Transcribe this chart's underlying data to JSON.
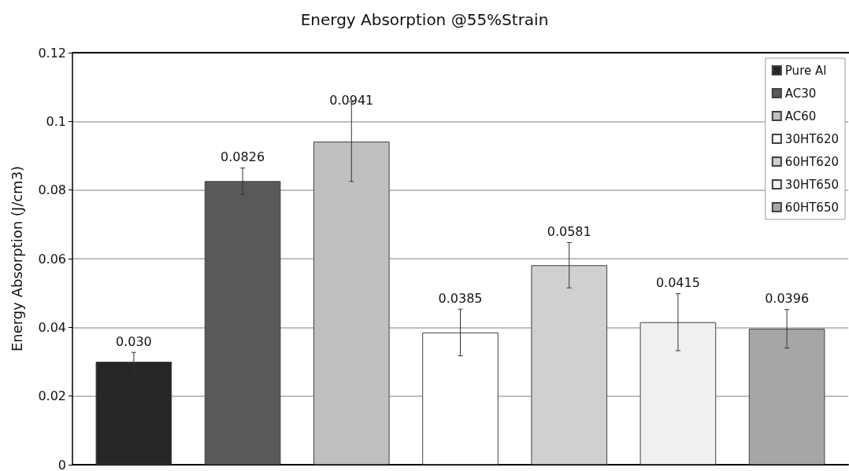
{
  "chart_data": {
    "type": "bar",
    "title": "Energy Absorption @55%Strain",
    "ylabel": "Energy Absorption (J/cm3)",
    "categories": [
      null
    ],
    "series": [
      {
        "name": "Pure Al",
        "color": "#262626",
        "values": [
          0.03
        ],
        "errors": [
          0.0027
        ],
        "value_labels": [
          "0.030"
        ]
      },
      {
        "name": "AC30",
        "color": "#595959",
        "values": [
          0.0826
        ],
        "errors": [
          0.0038
        ],
        "value_labels": [
          "0.0826"
        ]
      },
      {
        "name": "AC60",
        "color": "#bfbfbf",
        "values": [
          0.0941
        ],
        "errors": [
          0.0116
        ],
        "value_labels": [
          "0.0941"
        ]
      },
      {
        "name": "30HT620",
        "color": "#ffffff",
        "values": [
          0.0385
        ],
        "errors": [
          0.0068
        ],
        "value_labels": [
          "0.0385"
        ]
      },
      {
        "name": "60HT620",
        "color": "#d0d0d0",
        "values": [
          0.0581
        ],
        "errors": [
          0.0066
        ],
        "value_labels": [
          "0.0581"
        ]
      },
      {
        "name": "30HT650",
        "color": "#f0f0f0",
        "values": [
          0.0415
        ],
        "errors": [
          0.0083
        ],
        "value_labels": [
          "0.0415"
        ]
      },
      {
        "name": "60HT650",
        "color": "#a6a6a6",
        "values": [
          0.0396
        ],
        "errors": [
          0.0056
        ],
        "value_labels": [
          "0.0396"
        ]
      }
    ],
    "ylim": [
      0,
      0.12
    ],
    "yticks": [
      0,
      0.02,
      0.04,
      0.06,
      0.08,
      0.1,
      0.12
    ],
    "grid": "y",
    "legend": "top right"
  }
}
